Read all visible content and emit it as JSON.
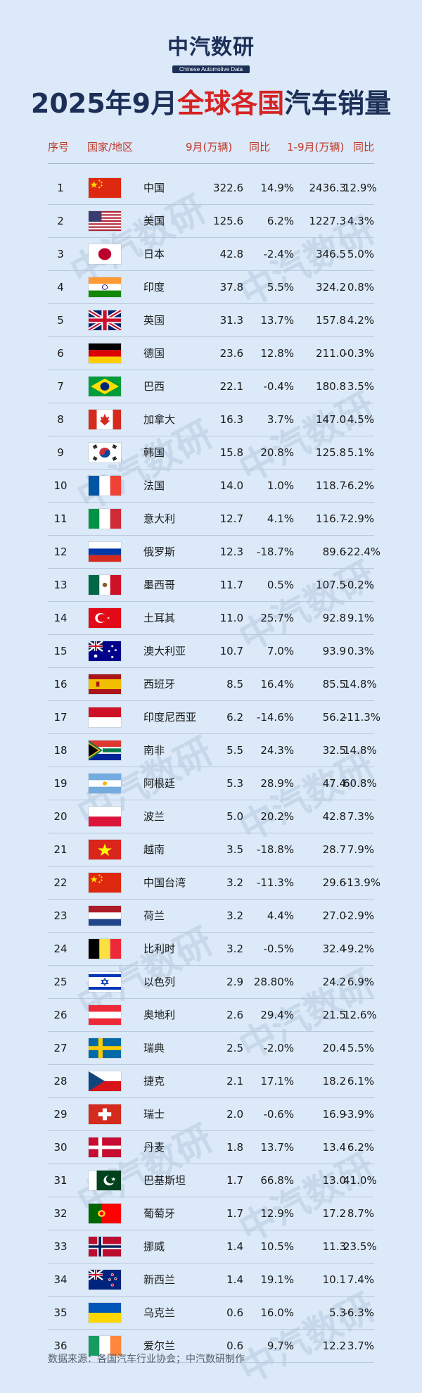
{
  "logo": {
    "cn": "中汽数研",
    "en": "Chinese Automotive Data"
  },
  "title": {
    "part1": "2025年9月",
    "highlight": "全球各国",
    "part2": "汽车销量"
  },
  "headers": {
    "rank": "序号",
    "country": "国家/地区",
    "sep": "9月(万辆)",
    "sep_yoy": "同比",
    "ytd": "1-9月(万辆)",
    "ytd_yoy": "同比"
  },
  "rows": [
    {
      "rank": "1",
      "flag": "cn",
      "country": "中国",
      "sep": "322.6",
      "sep_yoy": "14.9%",
      "ytd": "2436.3",
      "ytd_yoy": "12.9%"
    },
    {
      "rank": "2",
      "flag": "us",
      "country": "美国",
      "sep": "125.6",
      "sep_yoy": "6.2%",
      "ytd": "1227.3",
      "ytd_yoy": "4.3%"
    },
    {
      "rank": "3",
      "flag": "jp",
      "country": "日本",
      "sep": "42.8",
      "sep_yoy": "-2.4%",
      "ytd": "346.5",
      "ytd_yoy": "5.0%"
    },
    {
      "rank": "4",
      "flag": "in",
      "country": "印度",
      "sep": "37.8",
      "sep_yoy": "5.5%",
      "ytd": "324.2",
      "ytd_yoy": "0.8%"
    },
    {
      "rank": "5",
      "flag": "gb",
      "country": "英国",
      "sep": "31.3",
      "sep_yoy": "13.7%",
      "ytd": "157.8",
      "ytd_yoy": "4.2%"
    },
    {
      "rank": "6",
      "flag": "de",
      "country": "德国",
      "sep": "23.6",
      "sep_yoy": "12.8%",
      "ytd": "211.0",
      "ytd_yoy": "-0.3%"
    },
    {
      "rank": "7",
      "flag": "br",
      "country": "巴西",
      "sep": "22.1",
      "sep_yoy": "-0.4%",
      "ytd": "180.8",
      "ytd_yoy": "3.5%"
    },
    {
      "rank": "8",
      "flag": "ca",
      "country": "加拿大",
      "sep": "16.3",
      "sep_yoy": "3.7%",
      "ytd": "147.0",
      "ytd_yoy": "4.5%"
    },
    {
      "rank": "9",
      "flag": "kr",
      "country": "韩国",
      "sep": "15.8",
      "sep_yoy": "20.8%",
      "ytd": "125.8",
      "ytd_yoy": "5.1%"
    },
    {
      "rank": "10",
      "flag": "fr",
      "country": "法国",
      "sep": "14.0",
      "sep_yoy": "1.0%",
      "ytd": "118.7",
      "ytd_yoy": "-6.2%"
    },
    {
      "rank": "11",
      "flag": "it",
      "country": "意大利",
      "sep": "12.7",
      "sep_yoy": "4.1%",
      "ytd": "116.7",
      "ytd_yoy": "-2.9%"
    },
    {
      "rank": "12",
      "flag": "ru",
      "country": "俄罗斯",
      "sep": "12.3",
      "sep_yoy": "-18.7%",
      "ytd": "89.6",
      "ytd_yoy": "-22.4%"
    },
    {
      "rank": "13",
      "flag": "mx",
      "country": "墨西哥",
      "sep": "11.7",
      "sep_yoy": "0.5%",
      "ytd": "107.5",
      "ytd_yoy": "-0.2%"
    },
    {
      "rank": "14",
      "flag": "tr",
      "country": "土耳其",
      "sep": "11.0",
      "sep_yoy": "25.7%",
      "ytd": "92.8",
      "ytd_yoy": "9.1%"
    },
    {
      "rank": "15",
      "flag": "au",
      "country": "澳大利亚",
      "sep": "10.7",
      "sep_yoy": "7.0%",
      "ytd": "93.9",
      "ytd_yoy": "0.3%"
    },
    {
      "rank": "16",
      "flag": "es",
      "country": "西班牙",
      "sep": "8.5",
      "sep_yoy": "16.4%",
      "ytd": "85.5",
      "ytd_yoy": "14.8%"
    },
    {
      "rank": "17",
      "flag": "id",
      "country": "印度尼西亚",
      "sep": "6.2",
      "sep_yoy": "-14.6%",
      "ytd": "56.2",
      "ytd_yoy": "-11.3%"
    },
    {
      "rank": "18",
      "flag": "za",
      "country": "南非",
      "sep": "5.5",
      "sep_yoy": "24.3%",
      "ytd": "32.5",
      "ytd_yoy": "14.8%"
    },
    {
      "rank": "19",
      "flag": "ar",
      "country": "阿根廷",
      "sep": "5.3",
      "sep_yoy": "28.9%",
      "ytd": "47.4",
      "ytd_yoy": "60.8%"
    },
    {
      "rank": "20",
      "flag": "pl",
      "country": "波兰",
      "sep": "5.0",
      "sep_yoy": "20.2%",
      "ytd": "42.8",
      "ytd_yoy": "7.3%"
    },
    {
      "rank": "21",
      "flag": "vn",
      "country": "越南",
      "sep": "3.5",
      "sep_yoy": "-18.8%",
      "ytd": "28.7",
      "ytd_yoy": "7.9%"
    },
    {
      "rank": "22",
      "flag": "cn",
      "country": "中国台湾",
      "sep": "3.2",
      "sep_yoy": "-11.3%",
      "ytd": "29.6",
      "ytd_yoy": "-13.9%"
    },
    {
      "rank": "23",
      "flag": "nl",
      "country": "荷兰",
      "sep": "3.2",
      "sep_yoy": "4.4%",
      "ytd": "27.0",
      "ytd_yoy": "-2.9%"
    },
    {
      "rank": "24",
      "flag": "be",
      "country": "比利时",
      "sep": "3.2",
      "sep_yoy": "-0.5%",
      "ytd": "32.4",
      "ytd_yoy": "-9.2%"
    },
    {
      "rank": "25",
      "flag": "il",
      "country": "以色列",
      "sep": "2.9",
      "sep_yoy": "28.80%",
      "ytd": "24.2",
      "ytd_yoy": "6.9%"
    },
    {
      "rank": "26",
      "flag": "at",
      "country": "奥地利",
      "sep": "2.6",
      "sep_yoy": "29.4%",
      "ytd": "21.5",
      "ytd_yoy": "12.6%"
    },
    {
      "rank": "27",
      "flag": "se",
      "country": "瑞典",
      "sep": "2.5",
      "sep_yoy": "-2.0%",
      "ytd": "20.4",
      "ytd_yoy": "5.5%"
    },
    {
      "rank": "28",
      "flag": "cz",
      "country": "捷克",
      "sep": "2.1",
      "sep_yoy": "17.1%",
      "ytd": "18.2",
      "ytd_yoy": "6.1%"
    },
    {
      "rank": "29",
      "flag": "ch",
      "country": "瑞士",
      "sep": "2.0",
      "sep_yoy": "-0.6%",
      "ytd": "16.9",
      "ytd_yoy": "-3.9%"
    },
    {
      "rank": "30",
      "flag": "dk",
      "country": "丹麦",
      "sep": "1.8",
      "sep_yoy": "13.7%",
      "ytd": "13.4",
      "ytd_yoy": "6.2%"
    },
    {
      "rank": "31",
      "flag": "pk",
      "country": "巴基斯坦",
      "sep": "1.7",
      "sep_yoy": "66.8%",
      "ytd": "13.0",
      "ytd_yoy": "41.0%"
    },
    {
      "rank": "32",
      "flag": "pt",
      "country": "葡萄牙",
      "sep": "1.7",
      "sep_yoy": "12.9%",
      "ytd": "17.2",
      "ytd_yoy": "8.7%"
    },
    {
      "rank": "33",
      "flag": "no",
      "country": "挪威",
      "sep": "1.4",
      "sep_yoy": "10.5%",
      "ytd": "11.3",
      "ytd_yoy": "23.5%"
    },
    {
      "rank": "34",
      "flag": "nz",
      "country": "新西兰",
      "sep": "1.4",
      "sep_yoy": "19.1%",
      "ytd": "10.1",
      "ytd_yoy": "7.4%"
    },
    {
      "rank": "35",
      "flag": "ua",
      "country": "乌克兰",
      "sep": "0.6",
      "sep_yoy": "16.0%",
      "ytd": "5.3",
      "ytd_yoy": "-6.3%"
    },
    {
      "rank": "36",
      "flag": "ie",
      "country": "爱尔兰",
      "sep": "0.6",
      "sep_yoy": "9.7%",
      "ytd": "12.2",
      "ytd_yoy": "3.7%"
    }
  ],
  "footer": "数据来源：各国汽车行业协会；中汽数研制作",
  "colors": {
    "header_red": "#c0392b",
    "title_red": "#d62323",
    "navy": "#1c2f57",
    "background": "#dbe9f8"
  }
}
